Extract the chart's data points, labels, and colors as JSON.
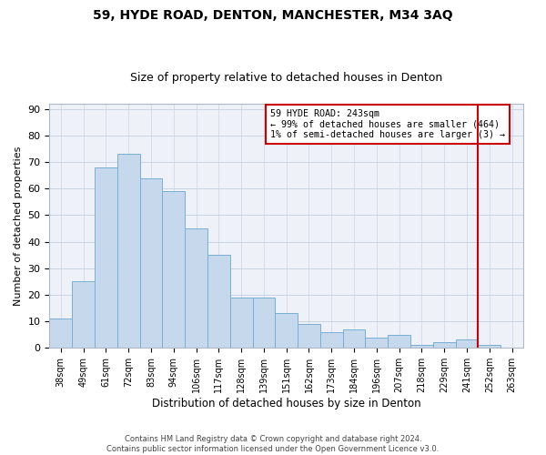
{
  "title": "59, HYDE ROAD, DENTON, MANCHESTER, M34 3AQ",
  "subtitle": "Size of property relative to detached houses in Denton",
  "xlabel": "Distribution of detached houses by size in Denton",
  "ylabel": "Number of detached properties",
  "categories": [
    "38sqm",
    "49sqm",
    "61sqm",
    "72sqm",
    "83sqm",
    "94sqm",
    "106sqm",
    "117sqm",
    "128sqm",
    "139sqm",
    "151sqm",
    "162sqm",
    "173sqm",
    "184sqm",
    "196sqm",
    "207sqm",
    "218sqm",
    "229sqm",
    "241sqm",
    "252sqm",
    "263sqm"
  ],
  "values": [
    11,
    25,
    68,
    73,
    64,
    59,
    45,
    35,
    19,
    19,
    13,
    9,
    6,
    7,
    4,
    5,
    1,
    2,
    3,
    1,
    0
  ],
  "bar_color": "#c5d8ec",
  "bar_edge_color": "#7aaed4",
  "ylim": [
    0,
    92
  ],
  "yticks": [
    0,
    10,
    20,
    30,
    40,
    50,
    60,
    70,
    80,
    90
  ],
  "vline_index": 19.5,
  "annotation_title": "59 HYDE ROAD: 243sqm",
  "annotation_line1": "← 99% of detached houses are smaller (464)",
  "annotation_line2": "1% of semi-detached houses are larger (3) →",
  "annotation_box_color": "#cc0000",
  "footer_line1": "Contains HM Land Registry data © Crown copyright and database right 2024.",
  "footer_line2": "Contains public sector information licensed under the Open Government Licence v3.0.",
  "background_color": "#eef2f8",
  "grid_color": "#c8d4e4"
}
